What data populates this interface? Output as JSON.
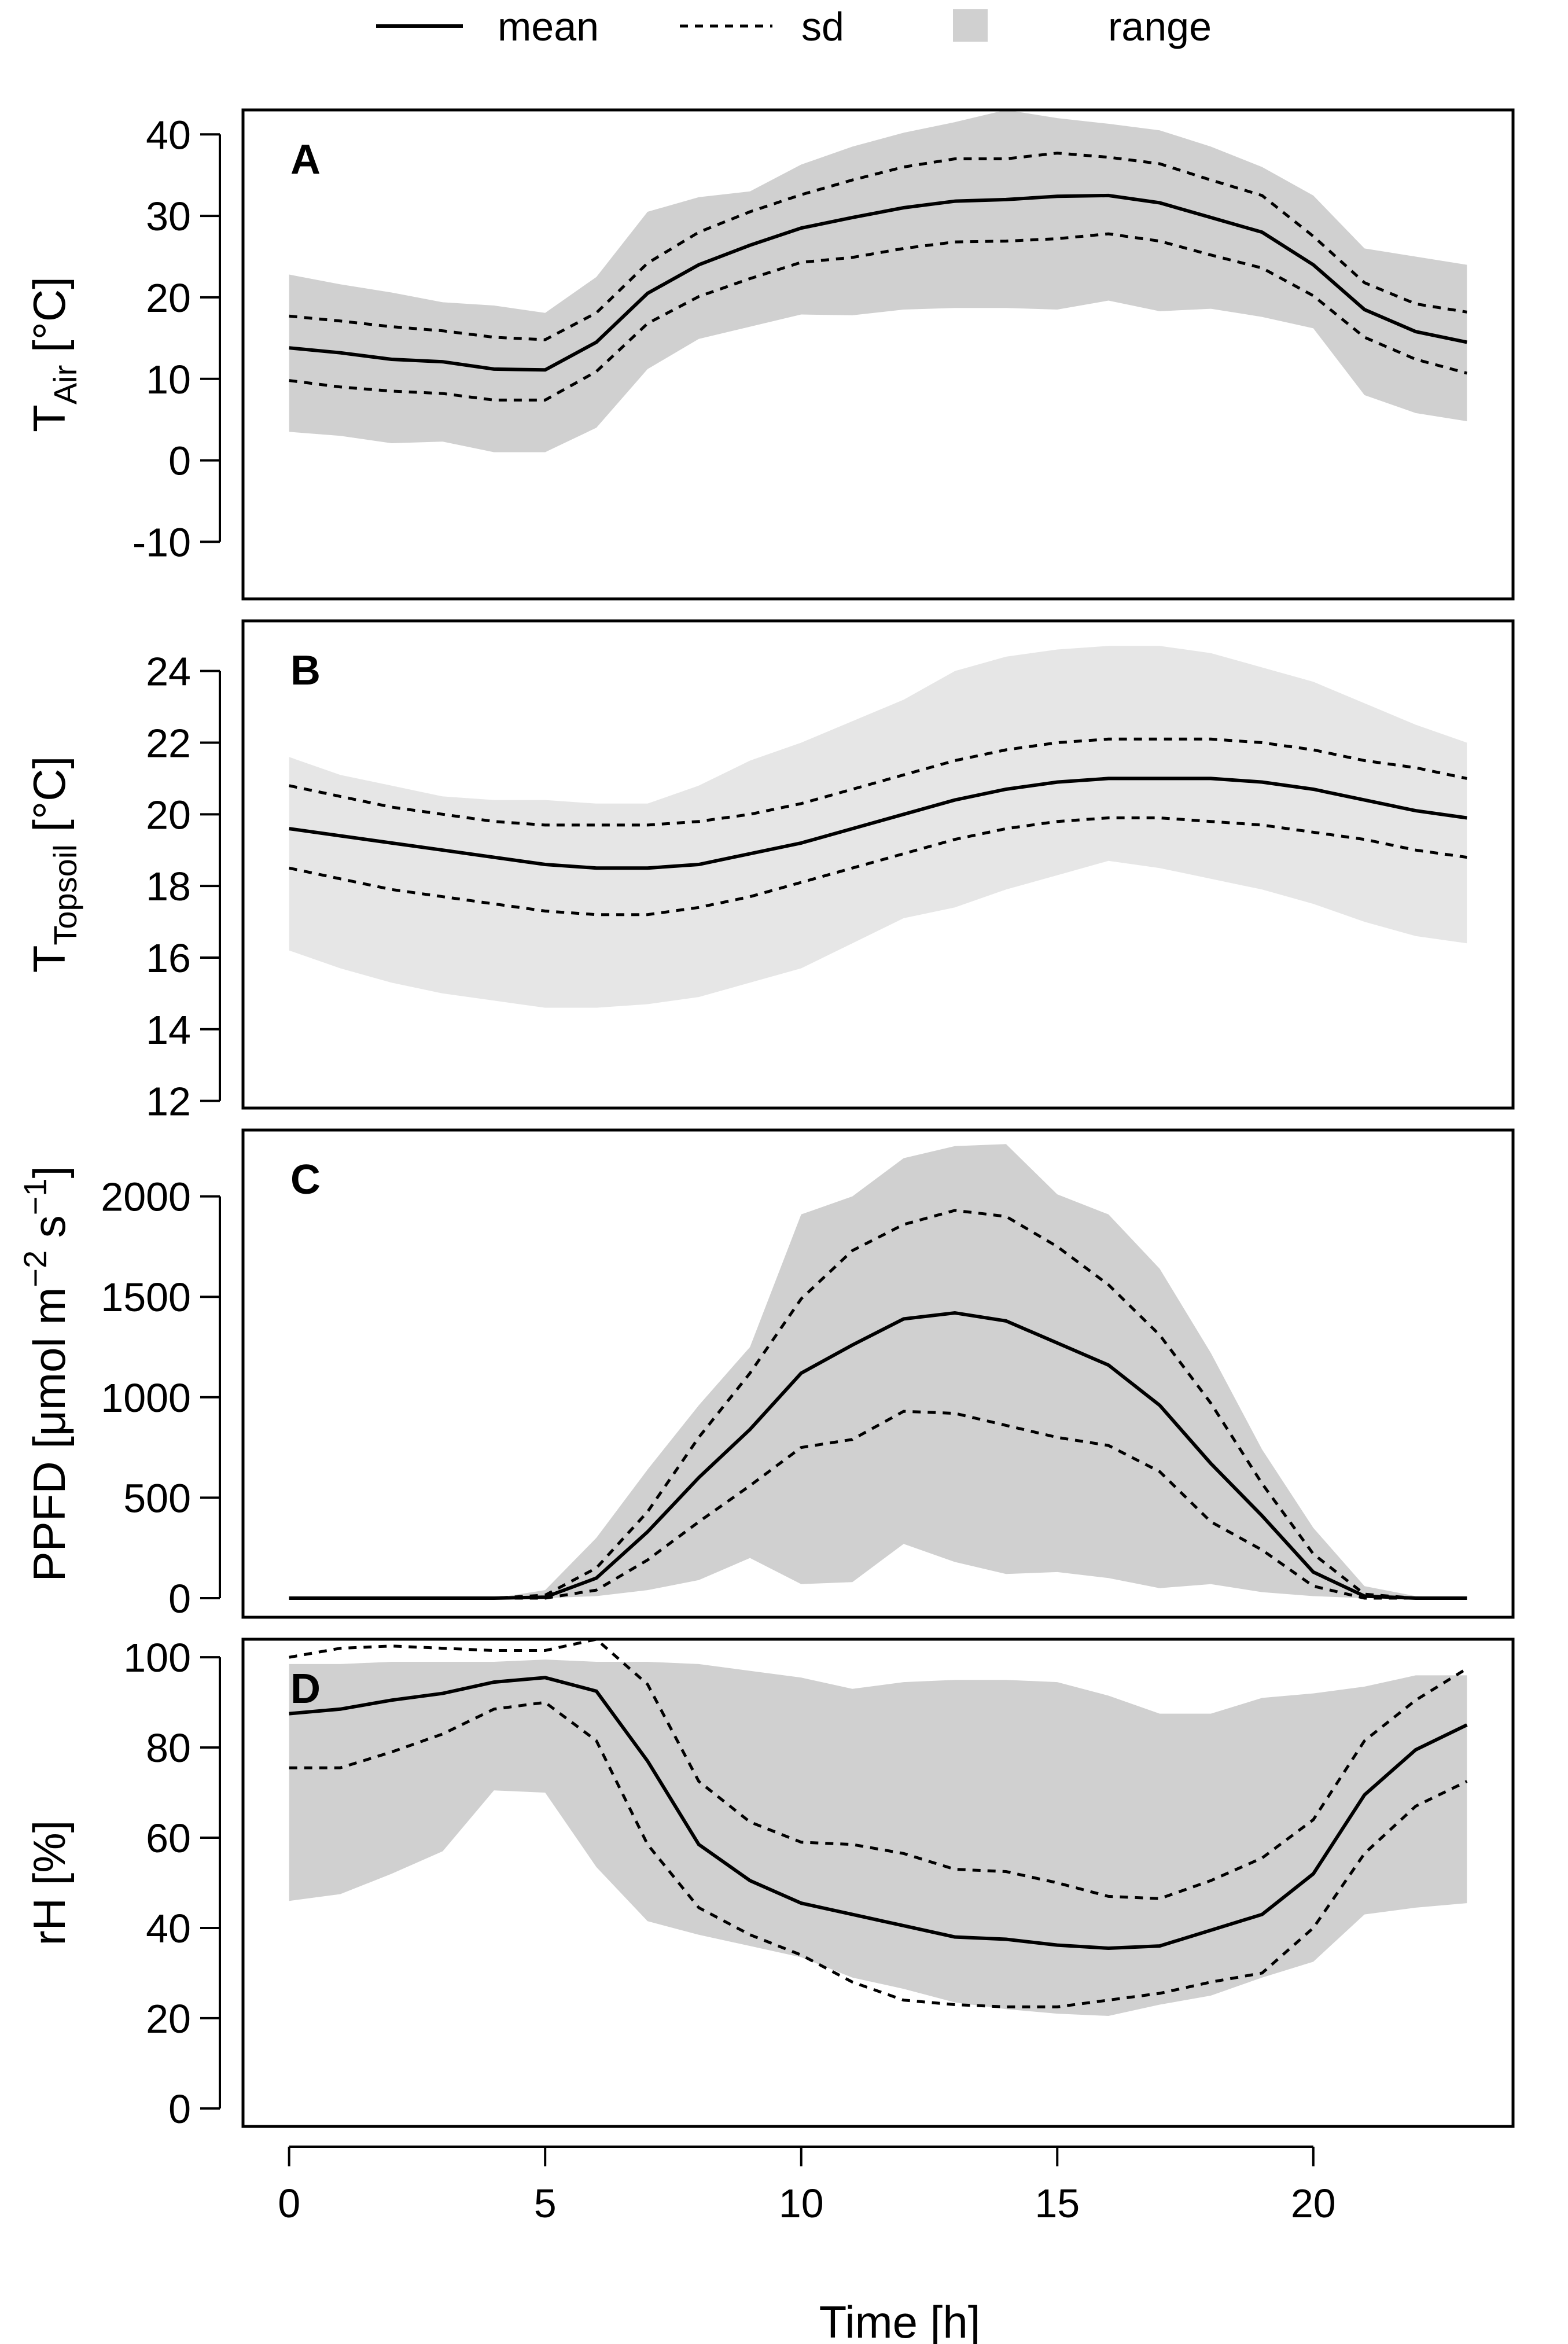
{
  "legend": {
    "mean_label": "mean",
    "sd_label": "sd",
    "range_label": "range"
  },
  "x_axis": {
    "label": "Time [h]",
    "ticks": [
      0,
      5,
      10,
      15,
      20
    ],
    "tick_labels": [
      "0",
      "5",
      "10",
      "15",
      "20"
    ],
    "xlim": [
      -0.9,
      23.9
    ]
  },
  "colors": {
    "band_dark": "#d0d0d0",
    "band_light": "#e6e6e6",
    "line": "#000000"
  },
  "chart_data": [
    {
      "type": "line",
      "panel": "A",
      "ylabel_main": "T",
      "ylabel_sub": "Air",
      "ylabel_unit": "[°C]",
      "ylim": [
        -17,
        43
      ],
      "yticks": [
        -10,
        0,
        10,
        20,
        30,
        40
      ],
      "ytick_labels": [
        "-10",
        "0",
        "10",
        "20",
        "30",
        "40"
      ],
      "band_shade": "dark",
      "x": [
        0,
        1,
        2,
        3,
        4,
        5,
        6,
        7,
        8,
        9,
        10,
        11,
        12,
        13,
        14,
        15,
        16,
        17,
        18,
        19,
        20,
        21,
        22,
        23
      ],
      "series": [
        {
          "name": "mean",
          "values": [
            13.8,
            13.2,
            12.4,
            12.1,
            11.2,
            11.1,
            14.5,
            20.5,
            24,
            26.4,
            28.5,
            29.8,
            31,
            31.8,
            32,
            32.4,
            32.5,
            31.6,
            29.8,
            28,
            24,
            18.5,
            15.8,
            14.5
          ]
        },
        {
          "name": "sd_upper",
          "values": [
            17.7,
            17.1,
            16.4,
            15.9,
            15.1,
            14.8,
            18.1,
            24.2,
            28,
            30.5,
            32.6,
            34.4,
            36,
            37,
            37,
            37.7,
            37.2,
            36.4,
            34.4,
            32.5,
            27.5,
            21.8,
            19.2,
            18.2
          ]
        },
        {
          "name": "sd_lower",
          "values": [
            9.8,
            9,
            8.5,
            8.2,
            7.4,
            7.4,
            10.9,
            16.8,
            20.1,
            22.3,
            24.3,
            24.9,
            26,
            26.8,
            26.9,
            27.2,
            27.8,
            26.9,
            25.2,
            23.6,
            20.2,
            15.1,
            12.4,
            10.7
          ]
        },
        {
          "name": "range_upper",
          "values": [
            22.8,
            21.6,
            20.6,
            19.4,
            19,
            18.1,
            22.5,
            30.5,
            32.3,
            33,
            36.3,
            38.5,
            40.2,
            41.5,
            43,
            42,
            41.3,
            40.5,
            38.5,
            36,
            32.5,
            26,
            25,
            24
          ]
        },
        {
          "name": "range_lower",
          "values": [
            3.5,
            3,
            2.1,
            2.3,
            1,
            1,
            4,
            11.2,
            14.9,
            16.4,
            17.9,
            17.8,
            18.5,
            18.7,
            18.7,
            18.5,
            19.6,
            18.3,
            18.6,
            17.6,
            16.2,
            8,
            5.8,
            4.8
          ]
        }
      ]
    },
    {
      "type": "line",
      "panel": "B",
      "ylabel_main": "T",
      "ylabel_sub": "Topsoil",
      "ylabel_unit": "[°C]",
      "ylim": [
        11.8,
        25.4
      ],
      "yticks": [
        12,
        14,
        16,
        18,
        20,
        22,
        24
      ],
      "ytick_labels": [
        "12",
        "14",
        "16",
        "18",
        "20",
        "22",
        "24"
      ],
      "band_shade": "light",
      "x": [
        0,
        1,
        2,
        3,
        4,
        5,
        6,
        7,
        8,
        9,
        10,
        11,
        12,
        13,
        14,
        15,
        16,
        17,
        18,
        19,
        20,
        21,
        22,
        23
      ],
      "series": [
        {
          "name": "mean",
          "values": [
            19.6,
            19.4,
            19.2,
            19,
            18.8,
            18.6,
            18.5,
            18.5,
            18.6,
            18.9,
            19.2,
            19.6,
            20,
            20.4,
            20.7,
            20.9,
            21,
            21,
            21,
            20.9,
            20.7,
            20.4,
            20.1,
            19.9
          ]
        },
        {
          "name": "sd_upper",
          "values": [
            20.8,
            20.5,
            20.2,
            20,
            19.8,
            19.7,
            19.7,
            19.7,
            19.8,
            20,
            20.3,
            20.7,
            21.1,
            21.5,
            21.8,
            22,
            22.1,
            22.1,
            22.1,
            22,
            21.8,
            21.5,
            21.3,
            21
          ]
        },
        {
          "name": "sd_lower",
          "values": [
            18.5,
            18.2,
            17.9,
            17.7,
            17.5,
            17.3,
            17.2,
            17.2,
            17.4,
            17.7,
            18.1,
            18.5,
            18.9,
            19.3,
            19.6,
            19.8,
            19.9,
            19.9,
            19.8,
            19.7,
            19.5,
            19.3,
            19,
            18.8
          ]
        },
        {
          "name": "range_upper",
          "values": [
            21.6,
            21.1,
            20.8,
            20.5,
            20.4,
            20.4,
            20.3,
            20.3,
            20.8,
            21.5,
            22,
            22.6,
            23.2,
            24,
            24.4,
            24.6,
            24.7,
            24.7,
            24.5,
            24.1,
            23.7,
            23.1,
            22.5,
            22
          ]
        },
        {
          "name": "range_lower",
          "values": [
            16.2,
            15.7,
            15.3,
            15,
            14.8,
            14.6,
            14.6,
            14.7,
            14.9,
            15.3,
            15.7,
            16.4,
            17.1,
            17.4,
            17.9,
            18.3,
            18.7,
            18.5,
            18.2,
            17.9,
            17.5,
            17,
            16.6,
            16.4
          ]
        }
      ]
    },
    {
      "type": "line",
      "panel": "C",
      "ylabel_main": "PPFD [μmol m",
      "ylabel_sup1": "−2",
      "ylabel_mid": " s",
      "ylabel_sup2": "−1",
      "ylabel_end": "]",
      "ylim": [
        -95,
        2330
      ],
      "yticks": [
        0,
        500,
        1000,
        1500,
        2000
      ],
      "ytick_labels": [
        "0",
        "500",
        "1000",
        "1500",
        "2000"
      ],
      "band_shade": "dark",
      "x": [
        0,
        1,
        2,
        3,
        4,
        5,
        6,
        7,
        8,
        9,
        10,
        11,
        12,
        13,
        14,
        15,
        16,
        17,
        18,
        19,
        20,
        21,
        22,
        23
      ],
      "series": [
        {
          "name": "mean",
          "values": [
            0,
            0,
            0,
            0,
            0,
            5,
            100,
            330,
            600,
            840,
            1120,
            1260,
            1390,
            1420,
            1380,
            1270,
            1160,
            960,
            670,
            410,
            130,
            10,
            0,
            0
          ]
        },
        {
          "name": "sd_upper",
          "values": [
            0,
            0,
            0,
            0,
            0,
            15,
            150,
            430,
            800,
            1120,
            1490,
            1730,
            1860,
            1930,
            1900,
            1750,
            1560,
            1310,
            970,
            570,
            220,
            20,
            0,
            0
          ]
        },
        {
          "name": "sd_lower",
          "values": [
            0,
            0,
            0,
            0,
            0,
            0,
            40,
            190,
            380,
            560,
            750,
            790,
            930,
            920,
            860,
            800,
            760,
            630,
            380,
            240,
            60,
            0,
            0,
            0
          ]
        },
        {
          "name": "range_upper",
          "values": [
            0,
            0,
            0,
            0,
            0,
            40,
            300,
            640,
            960,
            1250,
            1910,
            2000,
            2190,
            2250,
            2260,
            2010,
            1910,
            1640,
            1220,
            740,
            350,
            60,
            10,
            0
          ]
        },
        {
          "name": "range_lower",
          "values": [
            0,
            0,
            0,
            0,
            0,
            0,
            10,
            40,
            90,
            200,
            70,
            80,
            270,
            180,
            120,
            130,
            100,
            50,
            70,
            30,
            10,
            0,
            0,
            0
          ]
        }
      ]
    },
    {
      "type": "line",
      "panel": "D",
      "ylabel_main": "rH [%]",
      "ylim": [
        -4,
        104
      ],
      "yticks": [
        0,
        20,
        40,
        60,
        80,
        100
      ],
      "ytick_labels": [
        "0",
        "20",
        "40",
        "60",
        "80",
        "100"
      ],
      "band_shade": "dark",
      "x": [
        0,
        1,
        2,
        3,
        4,
        5,
        6,
        7,
        8,
        9,
        10,
        11,
        12,
        13,
        14,
        15,
        16,
        17,
        18,
        19,
        20,
        21,
        22,
        23
      ],
      "series": [
        {
          "name": "mean",
          "values": [
            87.5,
            88.5,
            90.5,
            92,
            94.5,
            95.5,
            92.5,
            77,
            58.5,
            50.5,
            45.5,
            43,
            40.5,
            38,
            37.5,
            36.2,
            35.5,
            36,
            39.5,
            43,
            52,
            69.5,
            79.5,
            85
          ]
        },
        {
          "name": "sd_upper",
          "values": [
            100,
            102,
            102.5,
            102,
            101.5,
            101.5,
            104,
            94,
            72.5,
            63.5,
            59,
            58.5,
            56.5,
            53,
            52.5,
            50,
            47,
            46.5,
            50.5,
            55.5,
            64,
            81.5,
            90.5,
            97.5
          ]
        },
        {
          "name": "sd_lower",
          "values": [
            75.5,
            75.5,
            79,
            83,
            88.5,
            90,
            81.5,
            58.5,
            44.5,
            38.5,
            34,
            28,
            24,
            23,
            22.5,
            22.5,
            24,
            25.5,
            28,
            30,
            40,
            56.5,
            67,
            72.5
          ]
        },
        {
          "name": "range_upper",
          "values": [
            98.5,
            98.5,
            99,
            99,
            99,
            99.5,
            99,
            99,
            98.5,
            97,
            95.5,
            93,
            94.5,
            95,
            95,
            94.5,
            91.5,
            87.5,
            87.5,
            91,
            92,
            93.5,
            96,
            96
          ]
        },
        {
          "name": "range_lower",
          "values": [
            46,
            47.5,
            52,
            57,
            70.5,
            70,
            53.5,
            41.5,
            38.5,
            36,
            33.5,
            29,
            26.5,
            23.5,
            22,
            21,
            20.5,
            23,
            25,
            29,
            32.5,
            43,
            44.5,
            45.5
          ]
        }
      ]
    }
  ]
}
